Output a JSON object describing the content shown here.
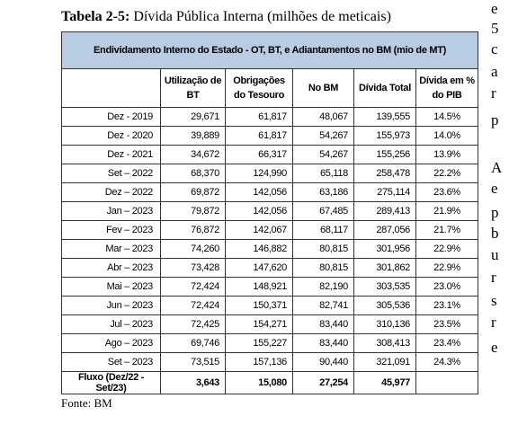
{
  "title": {
    "label": "Tabela 2-5:",
    "text": "Dívida Pública Interna (milhões de meticais)"
  },
  "table": {
    "caption": "Endividamento Interno do Estado - OT, BT, e Adiantamentos no BM (mio de MT)",
    "columns": [
      "Utilização de BT",
      "Obrigações do Tesouro",
      "No BM",
      "Dívida  Total",
      "Dívida em % do PIB"
    ],
    "rows": [
      [
        "Dez - 2019",
        "29,671",
        "61,817",
        "48,067",
        "139,555",
        "14.5%"
      ],
      [
        "Dez - 2020",
        "39,889",
        "61,817",
        "54,267",
        "155,973",
        "14.0%"
      ],
      [
        "Dez - 2021",
        "34,672",
        "66,317",
        "54,267",
        "155,256",
        "13.9%"
      ],
      [
        "Set – 2022",
        "68,370",
        "124,990",
        "65,118",
        "258,478",
        "22.2%"
      ],
      [
        "Dez – 2022",
        "69,872",
        "142,056",
        "63,186",
        "275,114",
        "23.6%"
      ],
      [
        "Jan – 2023",
        "79,872",
        "142,056",
        "67,485",
        "289,413",
        "21.9%"
      ],
      [
        "Fev – 2023",
        "76,872",
        "142,067",
        "68,117",
        "287,056",
        "21.7%"
      ],
      [
        "Mar – 2023",
        "74,260",
        "146,882",
        "80,815",
        "301,956",
        "22.9%"
      ],
      [
        "Abr – 2023",
        "73,428",
        "147,620",
        "80,815",
        "301,862",
        "22.9%"
      ],
      [
        "Mai – 2023",
        "72,424",
        "148,921",
        "82,190",
        "303,535",
        "23.0%"
      ],
      [
        "Jun – 2023",
        "72,424",
        "150,371",
        "82,741",
        "305,536",
        "23.1%"
      ],
      [
        "Jul – 2023",
        "72,425",
        "154,271",
        "83,440",
        "310,136",
        "23.5%"
      ],
      [
        "Ago – 2023",
        "69,746",
        "155,227",
        "83,440",
        "308,413",
        "23.4%"
      ],
      [
        "Set – 2023",
        "73,515",
        "157,136",
        "90,440",
        "321,091",
        "24.3%"
      ]
    ],
    "total": [
      "Fluxo (Dez/22 - Set/23)",
      "3,643",
      "15,080",
      "27,254",
      "45,977"
    ]
  },
  "source": "Fonte: BM",
  "margin_text": [
    "e",
    "5",
    "c",
    "a",
    "r",
    "p",
    "A",
    "e",
    "p",
    "b",
    "u",
    "r",
    "s",
    "r",
    "e"
  ]
}
